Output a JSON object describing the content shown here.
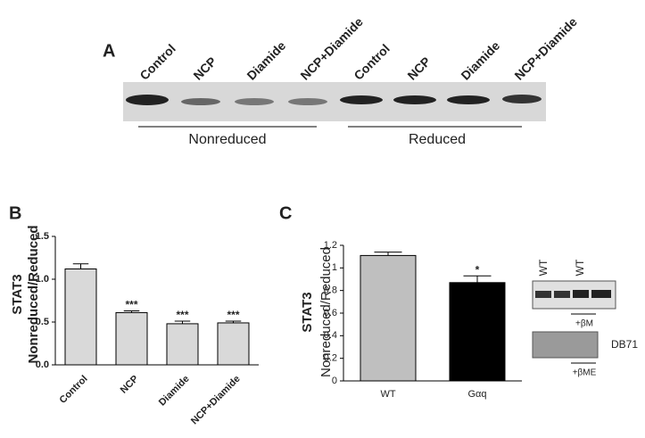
{
  "panel_a": {
    "label": "A",
    "lanes": [
      "Control",
      "NCP",
      "Diamide",
      "NCP+Diamide",
      "Control",
      "NCP",
      "Diamide",
      "NCP+Diamide"
    ],
    "groups": [
      "Nonreduced",
      "Reduced"
    ]
  },
  "chart_data": [
    {
      "type": "bar",
      "panel": "B",
      "ylabel": "STAT3",
      "ylabel2": "Nonreduced/Reduced",
      "categories": [
        "Control",
        "NCP",
        "Diamide",
        "NCP+Diamide"
      ],
      "values": [
        1.12,
        0.61,
        0.48,
        0.49
      ],
      "errors": [
        0.06,
        0.02,
        0.03,
        0.02
      ],
      "annotations": [
        null,
        "***",
        "***",
        "***"
      ],
      "color": "#d9d9d9",
      "ylim": [
        0,
        1.5
      ],
      "yticks": [
        {
          "value": 0,
          "label": "0.0"
        },
        {
          "value": 0.5,
          "label": "0.5"
        },
        {
          "value": 1,
          "label": "1.0"
        },
        {
          "value": 1.5,
          "label": "1.5"
        }
      ]
    },
    {
      "type": "bar",
      "panel": "C",
      "ylabel": "STAT3",
      "ylabel2": "Nonreduced/Reduced",
      "categories": [
        "WT",
        "Gαq"
      ],
      "values": [
        1.11,
        0.87
      ],
      "errors": [
        0.03,
        0.06
      ],
      "annotations": [
        null,
        "*"
      ],
      "colors": [
        "#bfbfbf",
        "#000000"
      ],
      "ylim": [
        0,
        1.2
      ],
      "yticks": [
        0,
        0.2,
        0.4,
        0.6,
        0.8,
        1,
        1.2
      ]
    }
  ],
  "panel_c_blot": {
    "lanes": [
      "WT",
      "WT"
    ],
    "treatment_top": "+βM",
    "stain": "DB71",
    "treatment_bottom": "+βME"
  }
}
